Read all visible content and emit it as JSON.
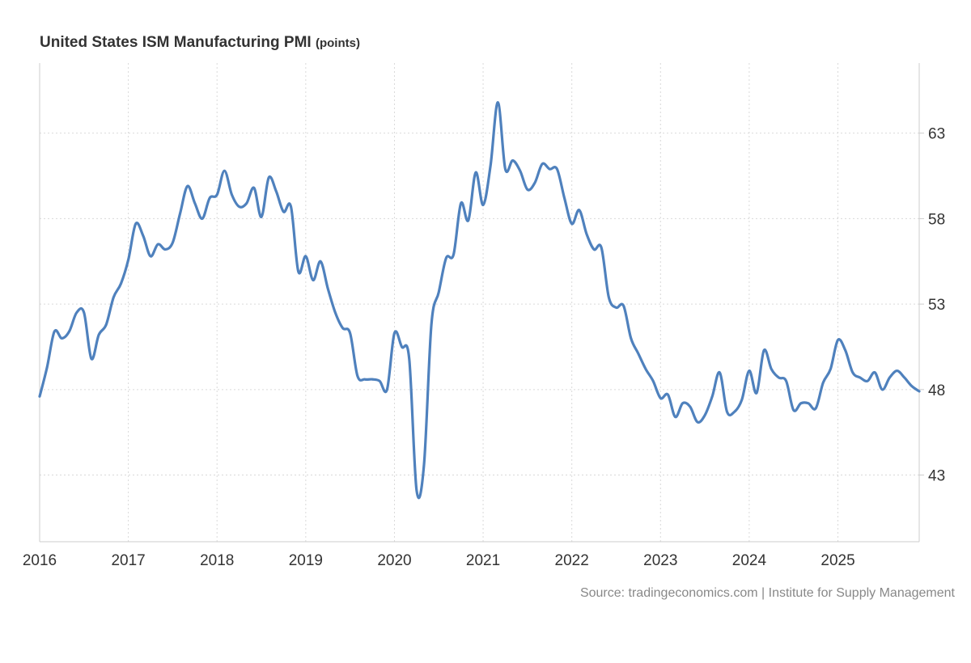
{
  "chart_data": {
    "type": "line",
    "title": "United States ISM Manufacturing PMI",
    "unit": "(points)",
    "source": "Source: tradingeconomics.com | Institute for Supply Management",
    "xlabel": "",
    "ylabel": "",
    "x_start": "2016-01",
    "x_end": "2025-12",
    "frequency": "monthly",
    "ylim": [
      39.1,
      67.1
    ],
    "grid": true,
    "y_axis_side": "right",
    "x_ticks": [
      "2016",
      "2017",
      "2018",
      "2019",
      "2020",
      "2021",
      "2022",
      "2023",
      "2024",
      "2025"
    ],
    "y_ticks": [
      43,
      48,
      53,
      58,
      63
    ],
    "color": "#4f81bd",
    "series": [
      {
        "name": "ISM Manufacturing PMI",
        "values": [
          47.6,
          49.3,
          51.4,
          51.0,
          51.4,
          52.5,
          52.5,
          49.8,
          51.2,
          51.8,
          53.4,
          54.2,
          55.6,
          57.7,
          57.0,
          55.8,
          56.5,
          56.2,
          56.6,
          58.3,
          59.9,
          58.9,
          58.0,
          59.2,
          59.4,
          60.8,
          59.4,
          58.7,
          58.9,
          59.8,
          58.1,
          60.4,
          59.6,
          58.4,
          58.7,
          54.9,
          55.8,
          54.4,
          55.5,
          53.9,
          52.5,
          51.6,
          51.3,
          48.8,
          48.6,
          48.6,
          48.5,
          48.0,
          51.3,
          50.5,
          49.8,
          42.1,
          43.6,
          51.8,
          53.7,
          55.7,
          55.9,
          58.9,
          57.9,
          60.7,
          58.8,
          61.1,
          64.8,
          60.9,
          61.4,
          60.8,
          59.7,
          60.1,
          61.2,
          60.9,
          60.9,
          59.2,
          57.7,
          58.5,
          57.1,
          56.2,
          56.3,
          53.4,
          52.8,
          52.9,
          51.0,
          50.1,
          49.2,
          48.5,
          47.5,
          47.7,
          46.4,
          47.2,
          47.0,
          46.1,
          46.5,
          47.6,
          49.0,
          46.7,
          46.7,
          47.4,
          49.1,
          47.8,
          50.3,
          49.2,
          48.7,
          48.5,
          46.8,
          47.2,
          47.2,
          46.9,
          48.4,
          49.2,
          50.9,
          50.3,
          49.0,
          48.7,
          48.5,
          49.0,
          48.0,
          48.7,
          49.1,
          48.7,
          48.2,
          47.9
        ]
      }
    ]
  }
}
